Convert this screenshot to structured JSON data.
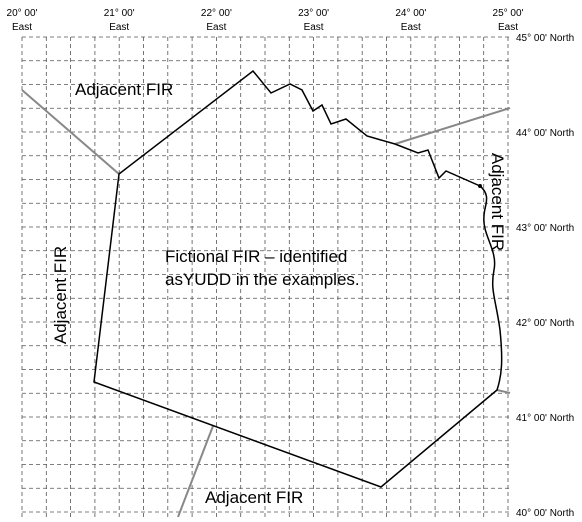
{
  "map": {
    "longitude_labels": [
      {
        "degrees": "20° 00'",
        "direction": "East"
      },
      {
        "degrees": "21° 00'",
        "direction": "East"
      },
      {
        "degrees": "22° 00'",
        "direction": "East"
      },
      {
        "degrees": "23° 00'",
        "direction": "East"
      },
      {
        "degrees": "24° 00'",
        "direction": "East"
      },
      {
        "degrees": "25° 00'",
        "direction": "East"
      }
    ],
    "latitude_labels": [
      "45° 00' North",
      "44° 00' North",
      "43° 00' North",
      "42° 00' North",
      "41° 00' North",
      "40° 00' North"
    ],
    "regions": {
      "north": "Adjacent FIR",
      "west": "Adjacent FIR",
      "east": "Adjacent FIR",
      "south": "Adjacent FIR"
    },
    "fir_label": [
      "Fictional FIR – identified",
      "asYUDD in the examples."
    ]
  }
}
